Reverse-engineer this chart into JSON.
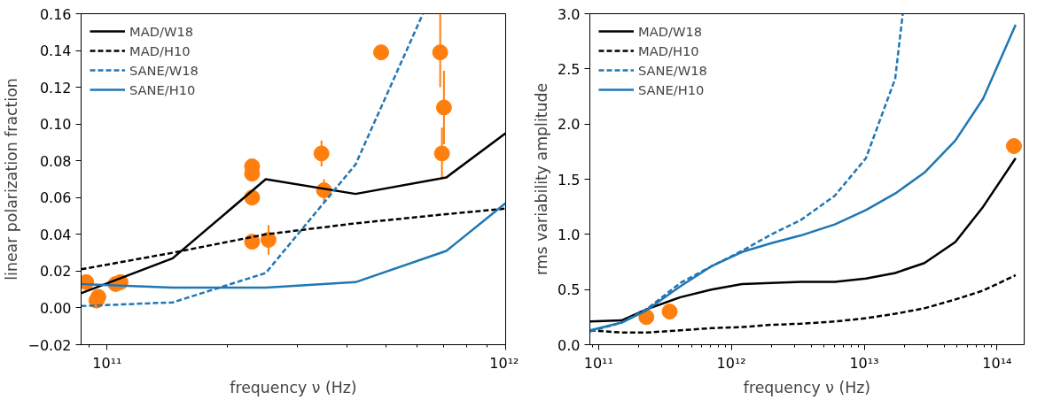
{
  "chart_data": [
    {
      "type": "line",
      "xlabel": "frequency ν (Hz)",
      "ylabel": "linear polarization fraction",
      "log": "x",
      "grid": false,
      "legend": "top left",
      "xlim": [
        86000000000.0,
        1000000000000.0
      ],
      "ylim": [
        -0.02,
        0.16
      ],
      "xticks": [
        {
          "value": 100000000000.0,
          "label": "10¹¹"
        },
        {
          "value": 1000000000000.0,
          "label": "10¹²"
        }
      ],
      "yticks": [
        {
          "value": -0.02,
          "label": "−0.02"
        },
        {
          "value": 0,
          "label": "0.00"
        },
        {
          "value": 0.02,
          "label": "0.02"
        },
        {
          "value": 0.04,
          "label": "0.04"
        },
        {
          "value": 0.06,
          "label": "0.06"
        },
        {
          "value": 0.08,
          "label": "0.08"
        },
        {
          "value": 0.1,
          "label": "0.10"
        },
        {
          "value": 0.12,
          "label": "0.12"
        },
        {
          "value": 0.14,
          "label": "0.14"
        },
        {
          "value": 0.16,
          "label": "0.16"
        }
      ],
      "series": [
        {
          "name": "MAD/W18",
          "color": "#000000",
          "line_style": "solid",
          "x": [
            86000000000.0,
            146000000000.0,
            250000000000.0,
            420000000000.0,
            710000000000.0,
            1000000000000.0
          ],
          "values": [
            0.008,
            0.027,
            0.07,
            0.062,
            0.071,
            0.095
          ]
        },
        {
          "name": "MAD/H10",
          "color": "#000000",
          "line_style": "dashed",
          "x": [
            86000000000.0,
            146000000000.0,
            250000000000.0,
            420000000000.0,
            710000000000.0,
            1000000000000.0
          ],
          "values": [
            0.021,
            0.03,
            0.04,
            0.046,
            0.051,
            0.054
          ]
        },
        {
          "name": "SANE/W18",
          "color": "#1f77b4",
          "line_style": "dashed",
          "x": [
            86000000000.0,
            146000000000.0,
            250000000000.0,
            420000000000.0,
            620000000000.0
          ],
          "values": [
            0.001,
            0.003,
            0.019,
            0.078,
            0.16
          ]
        },
        {
          "name": "SANE/H10",
          "color": "#1f77b4",
          "line_style": "solid",
          "x": [
            86000000000.0,
            146000000000.0,
            250000000000.0,
            420000000000.0,
            710000000000.0,
            1000000000000.0
          ],
          "values": [
            0.013,
            0.011,
            0.011,
            0.014,
            0.031,
            0.057
          ]
        },
        {
          "type": "scatter",
          "color": "#ff7f0e",
          "marker": "circle",
          "x": [
            88600000000.0,
            94000000000.0,
            95000000000.0,
            105000000000.0,
            108000000000.0,
            231000000000.0,
            231000000000.0,
            231000000000.0,
            231000000000.0,
            254000000000.0,
            345000000000.0,
            350000000000.0,
            487000000000.0,
            685000000000.0,
            700000000000.0,
            692000000000.0
          ],
          "values": [
            0.014,
            0.004,
            0.006,
            0.013,
            0.014,
            0.077,
            0.073,
            0.06,
            0.036,
            0.037,
            0.084,
            0.064,
            0.139,
            0.139,
            0.109,
            0.084
          ],
          "errors": [
            null,
            null,
            null,
            null,
            null,
            null,
            0.004,
            null,
            null,
            0.008,
            0.007,
            0.006,
            null,
            [
              0.12,
              0.16
            ],
            0.02,
            [
              0.071,
              0.098
            ]
          ]
        }
      ]
    },
    {
      "type": "line",
      "xlabel": "frequency ν (Hz)",
      "ylabel": "rms variability amplitude",
      "log": "x",
      "grid": false,
      "legend": "top left",
      "xlim": [
        86000000000.0,
        160000000000000.0
      ],
      "ylim": [
        0,
        3
      ],
      "xticks": [
        {
          "value": 100000000000.0,
          "label": "10¹¹"
        },
        {
          "value": 1000000000000.0,
          "label": "10¹²"
        },
        {
          "value": 10000000000000.0,
          "label": "10¹³"
        },
        {
          "value": 100000000000000.0,
          "label": "10¹⁴"
        }
      ],
      "yticks": [
        {
          "value": 0,
          "label": "0.0"
        },
        {
          "value": 0.5,
          "label": "0.5"
        },
        {
          "value": 1,
          "label": "1.0"
        },
        {
          "value": 1.5,
          "label": "1.5"
        },
        {
          "value": 2,
          "label": "2.0"
        },
        {
          "value": 2.5,
          "label": "2.5"
        },
        {
          "value": 3,
          "label": "3.0"
        }
      ],
      "series": [
        {
          "name": "MAD/W18",
          "color": "#000000",
          "line_style": "solid",
          "x": [
            86500000000.0,
            149000000000.0,
            229000000000.0,
            413000000000.0,
            706000000000.0,
            1200000000000.0,
            2000000000000.0,
            3330000000000.0,
            6000000000000.0,
            10300000000000.0,
            17100000000000.0,
            28400000000000.0,
            48500000000000.0,
            78500000000000.0,
            138000000000000.0
          ],
          "values": [
            0.21,
            0.22,
            0.32,
            0.43,
            0.5,
            0.55,
            0.56,
            0.57,
            0.57,
            0.6,
            0.65,
            0.74,
            0.93,
            1.25,
            1.69
          ]
        },
        {
          "name": "MAD/H10",
          "color": "#000000",
          "line_style": "dashed",
          "x": [
            86500000000.0,
            149000000000.0,
            229000000000.0,
            413000000000.0,
            706000000000.0,
            1200000000000.0,
            2000000000000.0,
            3330000000000.0,
            6000000000000.0,
            10300000000000.0,
            17100000000000.0,
            28400000000000.0,
            48500000000000.0,
            78500000000000.0,
            138000000000000.0
          ],
          "values": [
            0.13,
            0.11,
            0.11,
            0.13,
            0.15,
            0.16,
            0.18,
            0.19,
            0.21,
            0.24,
            0.28,
            0.33,
            0.41,
            0.49,
            0.63
          ]
        },
        {
          "name": "SANE/W18",
          "color": "#1f77b4",
          "line_style": "dashed",
          "x": [
            86500000000.0,
            149000000000.0,
            229000000000.0,
            413000000000.0,
            706000000000.0,
            1200000000000.0,
            2000000000000.0,
            3330000000000.0,
            6000000000000.0,
            10300000000000.0,
            17100000000000.0,
            19500000000000.0
          ],
          "values": [
            0.12,
            0.2,
            0.32,
            0.56,
            0.71,
            0.85,
            1.0,
            1.13,
            1.35,
            1.69,
            2.41,
            3.0
          ]
        },
        {
          "name": "SANE/H10",
          "color": "#1f77b4",
          "line_style": "solid",
          "x": [
            86500000000.0,
            149000000000.0,
            229000000000.0,
            413000000000.0,
            706000000000.0,
            1200000000000.0,
            2000000000000.0,
            3330000000000.0,
            6000000000000.0,
            10300000000000.0,
            17100000000000.0,
            28400000000000.0,
            48500000000000.0,
            78500000000000.0,
            138000000000000.0
          ],
          "values": [
            0.13,
            0.2,
            0.31,
            0.53,
            0.71,
            0.84,
            0.92,
            0.99,
            1.09,
            1.22,
            1.37,
            1.56,
            1.85,
            2.23,
            2.9
          ]
        },
        {
          "type": "scatter",
          "color": "#ff7f0e",
          "marker": "circle",
          "x": [
            229000000000.0,
            343000000000.0,
            134000000000000.0
          ],
          "values": [
            0.25,
            0.3,
            1.8
          ]
        }
      ]
    }
  ]
}
